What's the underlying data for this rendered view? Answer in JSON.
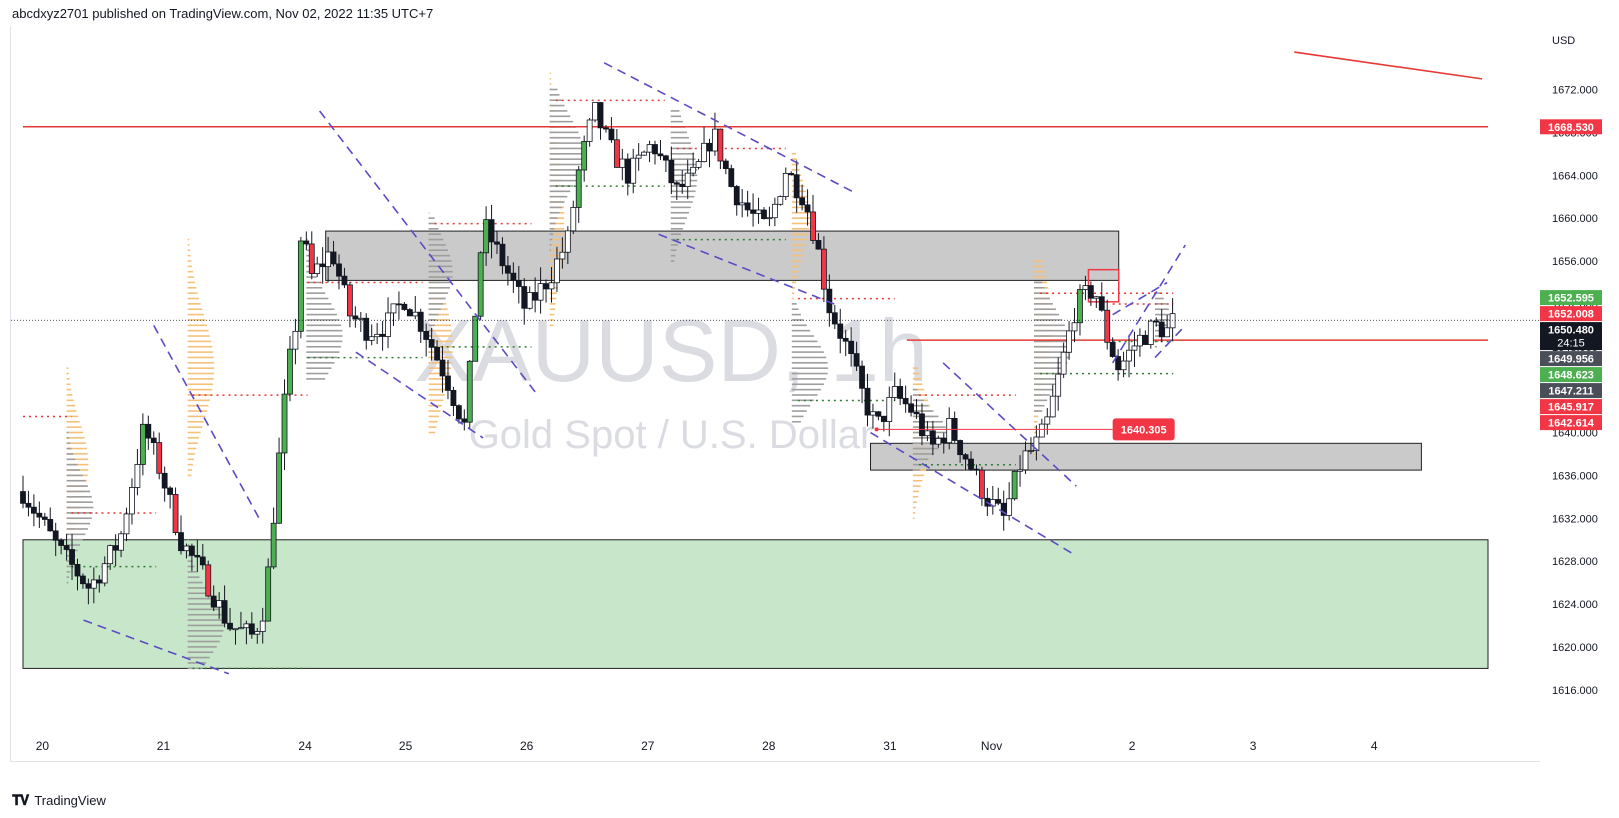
{
  "header": {
    "published_text": "abcdxyz2701 published on TradingView.com, Nov 02, 2022 11:35 UTC+7"
  },
  "footer": {
    "brand": "TradingView",
    "logo_icon": "tradingview-logo-icon"
  },
  "colors": {
    "bull": "#4caf50",
    "bear": "#f23645",
    "resistance": "#e53935",
    "channel": "#5b4cc4",
    "demand_zone": "#c8e6c9",
    "supply_zone": "#c4c4c4",
    "volume_profile_orange": "#f5c07a",
    "volume_profile_grey": "#9e9e9e",
    "poc_red": "#e53935",
    "poc_green": "#2e7d32"
  },
  "chart_data": {
    "type": "candlestick",
    "symbol": "XAUUSD",
    "timeframe": "1h",
    "watermark_title": "XAUUSD, 1h",
    "watermark_subtitle": "Gold Spot / U.S. Dollar",
    "currency": "USD",
    "ylim": [
      1613,
      1677
    ],
    "yticks": [
      1616,
      1620,
      1624,
      1628,
      1632,
      1636,
      1640,
      1644,
      1648,
      1652,
      1656,
      1660,
      1664,
      1668,
      1672
    ],
    "ytick_labels": [
      "1616.000",
      "1620.000",
      "1624.000",
      "1628.000",
      "1632.000",
      "1636.000",
      "1640.000",
      "1644.000",
      "1648.000",
      "1652.000",
      "1656.000",
      "1660.000",
      "1664.000",
      "1668.000",
      "1672.000"
    ],
    "xaxis_labels": [
      {
        "label": "20",
        "t": 0.16
      },
      {
        "label": "21",
        "t": 1.16
      },
      {
        "label": "24",
        "t": 2.33
      },
      {
        "label": "25",
        "t": 3.16
      },
      {
        "label": "26",
        "t": 4.16
      },
      {
        "label": "27",
        "t": 5.16
      },
      {
        "label": "28",
        "t": 6.16
      },
      {
        "label": "31",
        "t": 7.16
      },
      {
        "label": "Nov",
        "t": 8.0
      },
      {
        "label": "2",
        "t": 9.16
      },
      {
        "label": "3",
        "t": 10.16
      },
      {
        "label": "4",
        "t": 11.16
      }
    ],
    "ohlc_path": [
      [
        0.0,
        1634.5
      ],
      [
        0.3,
        1629.0
      ],
      [
        0.55,
        1625.5
      ],
      [
        0.8,
        1630.0
      ],
      [
        1.0,
        1640.5
      ],
      [
        1.15,
        1636.0
      ],
      [
        1.3,
        1630.0
      ],
      [
        1.5,
        1626.5
      ],
      [
        1.7,
        1622.0
      ],
      [
        1.9,
        1621.0
      ],
      [
        2.0,
        1624.0
      ],
      [
        2.1,
        1636.0
      ],
      [
        2.18,
        1645.0
      ],
      [
        2.25,
        1650.0
      ],
      [
        2.3,
        1659.0
      ],
      [
        2.38,
        1654.5
      ],
      [
        2.55,
        1657.0
      ],
      [
        2.7,
        1651.0
      ],
      [
        2.85,
        1649.5
      ],
      [
        3.0,
        1650.0
      ],
      [
        3.15,
        1652.5
      ],
      [
        3.3,
        1650.0
      ],
      [
        3.5,
        1645.0
      ],
      [
        3.65,
        1640.5
      ],
      [
        3.8,
        1659.5
      ],
      [
        4.0,
        1655.0
      ],
      [
        4.15,
        1651.5
      ],
      [
        4.35,
        1654.5
      ],
      [
        4.5,
        1658.0
      ],
      [
        4.6,
        1665.0
      ],
      [
        4.72,
        1670.0
      ],
      [
        4.85,
        1666.5
      ],
      [
        5.0,
        1664.0
      ],
      [
        5.2,
        1667.0
      ],
      [
        5.4,
        1662.5
      ],
      [
        5.55,
        1664.0
      ],
      [
        5.7,
        1668.0
      ],
      [
        5.85,
        1663.0
      ],
      [
        6.0,
        1660.5
      ],
      [
        6.15,
        1659.0
      ],
      [
        6.3,
        1664.5
      ],
      [
        6.45,
        1662.0
      ],
      [
        6.55,
        1658.0
      ],
      [
        6.65,
        1652.0
      ],
      [
        6.8,
        1648.0
      ],
      [
        6.95,
        1643.0
      ],
      [
        7.05,
        1640.5
      ],
      [
        7.2,
        1643.5
      ],
      [
        7.35,
        1642.0
      ],
      [
        7.5,
        1638.5
      ],
      [
        7.65,
        1640.5
      ],
      [
        7.8,
        1637.5
      ],
      [
        7.95,
        1634.0
      ],
      [
        8.1,
        1632.0
      ],
      [
        8.25,
        1637.5
      ],
      [
        8.35,
        1638.5
      ],
      [
        8.45,
        1640.5
      ],
      [
        8.55,
        1645.0
      ],
      [
        8.7,
        1652.0
      ],
      [
        8.85,
        1653.5
      ],
      [
        8.95,
        1649.0
      ],
      [
        9.05,
        1646.0
      ],
      [
        9.2,
        1648.5
      ],
      [
        9.35,
        1650.0
      ],
      [
        9.45,
        1649.5
      ],
      [
        9.5,
        1650.48
      ]
    ],
    "price_labels": [
      {
        "value": 1668.53,
        "text": "1668.530",
        "bg": "#f23645",
        "fg": "#ffffff"
      },
      {
        "value": 1652.595,
        "text": "1652.595",
        "bg": "#4caf50",
        "fg": "#ffffff"
      },
      {
        "value": 1652.008,
        "text": "1652.008",
        "bg": "#f23645",
        "fg": "#ffffff"
      },
      {
        "value": 1650.48,
        "text": "1650.480",
        "sub": "24:15",
        "bg": "#131722",
        "fg": "#ffffff"
      },
      {
        "value": 1649.956,
        "text": "1649.956",
        "bg": "#4a4e59",
        "fg": "#ffffff"
      },
      {
        "value": 1648.623,
        "text": "1648.623",
        "bg": "#4caf50",
        "fg": "#ffffff"
      },
      {
        "value": 1647.211,
        "text": "1647.211",
        "bg": "#4a4e59",
        "fg": "#ffffff"
      },
      {
        "value": 1645.917,
        "text": "1645.917",
        "bg": "#f23645",
        "fg": "#ffffff"
      },
      {
        "value": 1642.614,
        "text": "1642.614",
        "bg": "#f23645",
        "fg": "#ffffff"
      }
    ],
    "callout": {
      "value": 1640.305,
      "text": "1640.305",
      "t_start": 7.05,
      "t_end": 9.0
    },
    "horizontal_lines": [
      {
        "value": 1668.53,
        "t_start": 0,
        "t_end": 12.1,
        "color": "#e53935"
      },
      {
        "value": 1648.623,
        "t_start": 7.3,
        "t_end": 12.1,
        "color": "#e53935"
      }
    ],
    "zones": [
      {
        "type": "demand",
        "top": 1630.0,
        "bottom": 1618.0,
        "t_start": 0,
        "t_end": 12.1
      },
      {
        "type": "supply",
        "top": 1658.8,
        "bottom": 1654.2,
        "t_start": 2.5,
        "t_end": 9.05
      },
      {
        "type": "supply",
        "top": 1639.0,
        "bottom": 1636.5,
        "t_start": 7.0,
        "t_end": 11.55
      }
    ],
    "small_boxes": [
      {
        "top": 1655.2,
        "bottom": 1652.2,
        "t_start": 8.8,
        "t_end": 9.05
      }
    ],
    "trend_lines": [
      {
        "t1": 10.5,
        "v1": 1675.5,
        "t2": 12.05,
        "v2": 1673.0,
        "color": "#e53935",
        "dash": false
      },
      {
        "t1": 1.08,
        "v1": 1650.0,
        "t2": 1.95,
        "v2": 1632.0,
        "color": "#5b4cc4",
        "dash": true
      },
      {
        "t1": 0.5,
        "v1": 1622.5,
        "t2": 1.7,
        "v2": 1617.5,
        "color": "#5b4cc4",
        "dash": true
      },
      {
        "t1": 2.45,
        "v1": 1670.0,
        "t2": 4.25,
        "v2": 1643.5,
        "color": "#5b4cc4",
        "dash": true
      },
      {
        "t1": 2.75,
        "v1": 1647.5,
        "t2": 3.8,
        "v2": 1639.5,
        "color": "#5b4cc4",
        "dash": true
      },
      {
        "t1": 4.8,
        "v1": 1674.5,
        "t2": 6.85,
        "v2": 1662.5,
        "color": "#5b4cc4",
        "dash": true
      },
      {
        "t1": 5.25,
        "v1": 1658.5,
        "t2": 6.7,
        "v2": 1652.0,
        "color": "#5b4cc4",
        "dash": true
      },
      {
        "t1": 7.0,
        "v1": 1640.0,
        "t2": 8.7,
        "v2": 1628.5,
        "color": "#5b4cc4",
        "dash": true
      },
      {
        "t1": 7.6,
        "v1": 1646.5,
        "t2": 8.7,
        "v2": 1635.0,
        "color": "#5b4cc4",
        "dash": true
      },
      {
        "t1": 9.0,
        "v1": 1646.5,
        "t2": 9.6,
        "v2": 1657.5,
        "color": "#5b4cc4",
        "dash": true
      },
      {
        "t1": 9.0,
        "v1": 1651.0,
        "t2": 9.45,
        "v2": 1654.0,
        "color": "#5b4cc4",
        "dash": true
      },
      {
        "t1": 9.35,
        "v1": 1647.0,
        "t2": 9.6,
        "v2": 1650.0,
        "color": "#5b4cc4",
        "dash": true
      }
    ],
    "volume_profiles": [
      {
        "t": 0.36,
        "center": 1637.0,
        "spread": 4.0,
        "top": 1646.0,
        "bottom": 1624.0,
        "width": 0.18,
        "color": "orange"
      },
      {
        "t": 0.36,
        "center": 1633.0,
        "spread": 3.0,
        "top": 1640.0,
        "bottom": 1626.0,
        "width": 0.22,
        "color": "grey"
      },
      {
        "t": 1.36,
        "center": 1646.0,
        "spread": 5.0,
        "top": 1658.0,
        "bottom": 1636.0,
        "width": 0.22,
        "color": "orange"
      },
      {
        "t": 1.36,
        "center": 1622.0,
        "spread": 3.0,
        "top": 1644.0,
        "bottom": 1618.0,
        "width": 0.3,
        "color": "grey"
      },
      {
        "t": 2.34,
        "center": 1649.0,
        "spread": 3.5,
        "top": 1660.0,
        "bottom": 1645.0,
        "width": 0.3,
        "color": "grey"
      },
      {
        "t": 3.35,
        "center": 1648.0,
        "spread": 5.0,
        "top": 1662.0,
        "bottom": 1640.0,
        "width": 0.2,
        "color": "orange"
      },
      {
        "t": 3.35,
        "center": 1655.0,
        "spread": 3.0,
        "top": 1660.0,
        "bottom": 1645.0,
        "width": 0.2,
        "color": "grey"
      },
      {
        "t": 4.35,
        "center": 1660.0,
        "spread": 6.0,
        "top": 1675.0,
        "bottom": 1650.0,
        "width": 0.12,
        "color": "orange"
      },
      {
        "t": 4.35,
        "center": 1666.0,
        "spread": 3.5,
        "top": 1672.0,
        "bottom": 1656.0,
        "width": 0.28,
        "color": "grey"
      },
      {
        "t": 5.35,
        "center": 1664.0,
        "spread": 4.0,
        "top": 1670.0,
        "bottom": 1656.0,
        "width": 0.22,
        "color": "grey"
      },
      {
        "t": 6.35,
        "center": 1660.0,
        "spread": 3.5,
        "top": 1666.0,
        "bottom": 1652.0,
        "width": 0.15,
        "color": "orange"
      },
      {
        "t": 6.35,
        "center": 1646.0,
        "spread": 3.0,
        "top": 1652.0,
        "bottom": 1641.0,
        "width": 0.3,
        "color": "grey"
      },
      {
        "t": 7.35,
        "center": 1640.0,
        "spread": 3.5,
        "top": 1646.0,
        "bottom": 1632.0,
        "width": 0.18,
        "color": "orange"
      },
      {
        "t": 7.35,
        "center": 1640.0,
        "spread": 2.0,
        "top": 1644.0,
        "bottom": 1636.5,
        "width": 0.28,
        "color": "grey"
      },
      {
        "t": 8.35,
        "center": 1650.0,
        "spread": 5.0,
        "top": 1656.0,
        "bottom": 1634.0,
        "width": 0.15,
        "color": "orange"
      },
      {
        "t": 8.35,
        "center": 1648.0,
        "spread": 3.5,
        "top": 1654.0,
        "bottom": 1642.0,
        "width": 0.3,
        "color": "grey"
      },
      {
        "t": 9.35,
        "center": 1651.0,
        "spread": 1.5,
        "top": 1653.0,
        "bottom": 1648.0,
        "width": 0.12,
        "color": "grey"
      }
    ],
    "poc_lines": [
      {
        "value": 1632.5,
        "t_start": 0.4,
        "t_end": 1.1,
        "color": "red"
      },
      {
        "value": 1627.5,
        "t_start": 0.4,
        "t_end": 1.1,
        "color": "green"
      },
      {
        "value": 1641.5,
        "t_start": 0.0,
        "t_end": 0.4,
        "color": "red"
      },
      {
        "value": 1643.5,
        "t_start": 1.4,
        "t_end": 2.35,
        "color": "red"
      },
      {
        "value": 1618.0,
        "t_start": 1.4,
        "t_end": 2.35,
        "color": "green"
      },
      {
        "value": 1654.0,
        "t_start": 2.35,
        "t_end": 3.3,
        "color": "red"
      },
      {
        "value": 1647.0,
        "t_start": 2.35,
        "t_end": 3.3,
        "color": "green"
      },
      {
        "value": 1659.5,
        "t_start": 3.4,
        "t_end": 4.2,
        "color": "red"
      },
      {
        "value": 1648.0,
        "t_start": 3.4,
        "t_end": 4.2,
        "color": "green"
      },
      {
        "value": 1671.0,
        "t_start": 4.4,
        "t_end": 5.3,
        "color": "red"
      },
      {
        "value": 1663.0,
        "t_start": 4.4,
        "t_end": 5.3,
        "color": "green"
      },
      {
        "value": 1666.5,
        "t_start": 5.4,
        "t_end": 6.3,
        "color": "red"
      },
      {
        "value": 1658.0,
        "t_start": 5.4,
        "t_end": 6.3,
        "color": "green"
      },
      {
        "value": 1652.5,
        "t_start": 6.4,
        "t_end": 7.2,
        "color": "red"
      },
      {
        "value": 1643.0,
        "t_start": 6.4,
        "t_end": 7.2,
        "color": "green"
      },
      {
        "value": 1643.5,
        "t_start": 7.4,
        "t_end": 8.2,
        "color": "red"
      },
      {
        "value": 1637.0,
        "t_start": 7.4,
        "t_end": 8.2,
        "color": "green"
      },
      {
        "value": 1653.0,
        "t_start": 8.4,
        "t_end": 9.5,
        "color": "red"
      },
      {
        "value": 1645.5,
        "t_start": 8.4,
        "t_end": 9.5,
        "color": "green"
      },
      {
        "value": 1652.0,
        "t_start": 9.0,
        "t_end": 9.5,
        "color": "red"
      },
      {
        "value": 1648.5,
        "t_start": 9.0,
        "t_end": 9.5,
        "color": "green"
      }
    ],
    "last_price": 1650.48
  }
}
